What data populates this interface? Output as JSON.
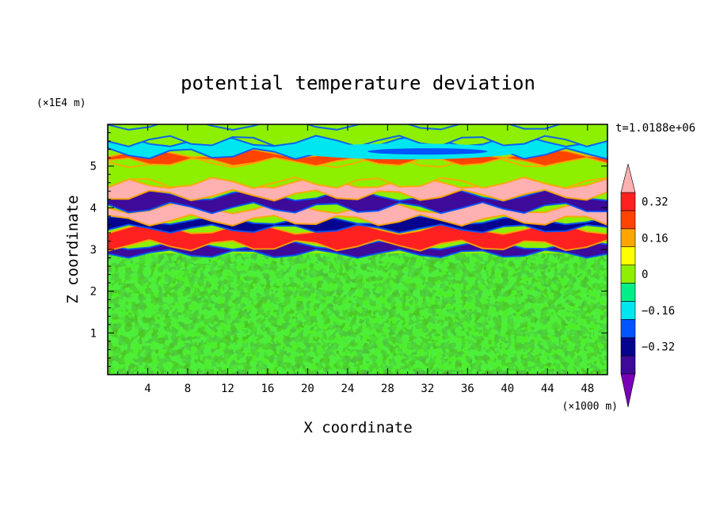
{
  "chart_data": {
    "type": "heatmap",
    "title": "potential temperature deviation",
    "xlabel": "X coordinate",
    "ylabel": "Z coordinate",
    "x_unit": "(×1000 m)",
    "y_unit": "(×1E4 m)",
    "time_label": "t=1.0188e+06",
    "xlim": [
      0,
      50
    ],
    "ylim": [
      0,
      6
    ],
    "x_ticks": [
      4,
      8,
      12,
      16,
      20,
      24,
      28,
      32,
      36,
      40,
      44,
      48
    ],
    "y_ticks": [
      1,
      2,
      3,
      4,
      5
    ],
    "colorbar": {
      "levels": [
        -0.48,
        -0.4,
        -0.32,
        -0.24,
        -0.16,
        -0.08,
        0,
        0.08,
        0.16,
        0.24,
        0.32,
        0.4,
        0.48
      ],
      "colors": [
        "#7a00b8",
        "#3d0a9a",
        "#06048f",
        "#0055ff",
        "#00e6f0",
        "#00ee88",
        "#8cf000",
        "#ffff00",
        "#ffa500",
        "#ff4400",
        "#ff2020",
        "#ffb0b0"
      ],
      "tick_labels": [
        "0.32",
        "0.16",
        "0",
        "−0.16",
        "−0.32"
      ],
      "tick_values": [
        0.32,
        0.16,
        0,
        -0.16,
        -0.32
      ],
      "extend": "both"
    },
    "layers": [
      {
        "z_range": [
          0,
          2.9
        ],
        "description_value": 0
      },
      {
        "z_range": [
          2.9,
          3.1
        ],
        "value": -0.4
      },
      {
        "z_range": [
          3.1,
          3.5
        ],
        "value": 0.35
      },
      {
        "z_range": [
          3.5,
          3.7
        ],
        "value": -0.3
      },
      {
        "z_range": [
          3.7,
          4.0
        ],
        "value": 0.45
      },
      {
        "z_range": [
          4.0,
          4.3
        ],
        "value": -0.4
      },
      {
        "z_range": [
          4.3,
          4.6
        ],
        "value": 0.4
      },
      {
        "z_range": [
          4.6,
          5.1
        ],
        "value": 0.02
      },
      {
        "z_range": [
          5.1,
          5.3
        ],
        "value": 0.3
      },
      {
        "z_range": [
          5.3,
          5.6
        ],
        "value": -0.1
      },
      {
        "z_range": [
          5.6,
          6.0
        ],
        "value": 0
      }
    ]
  }
}
